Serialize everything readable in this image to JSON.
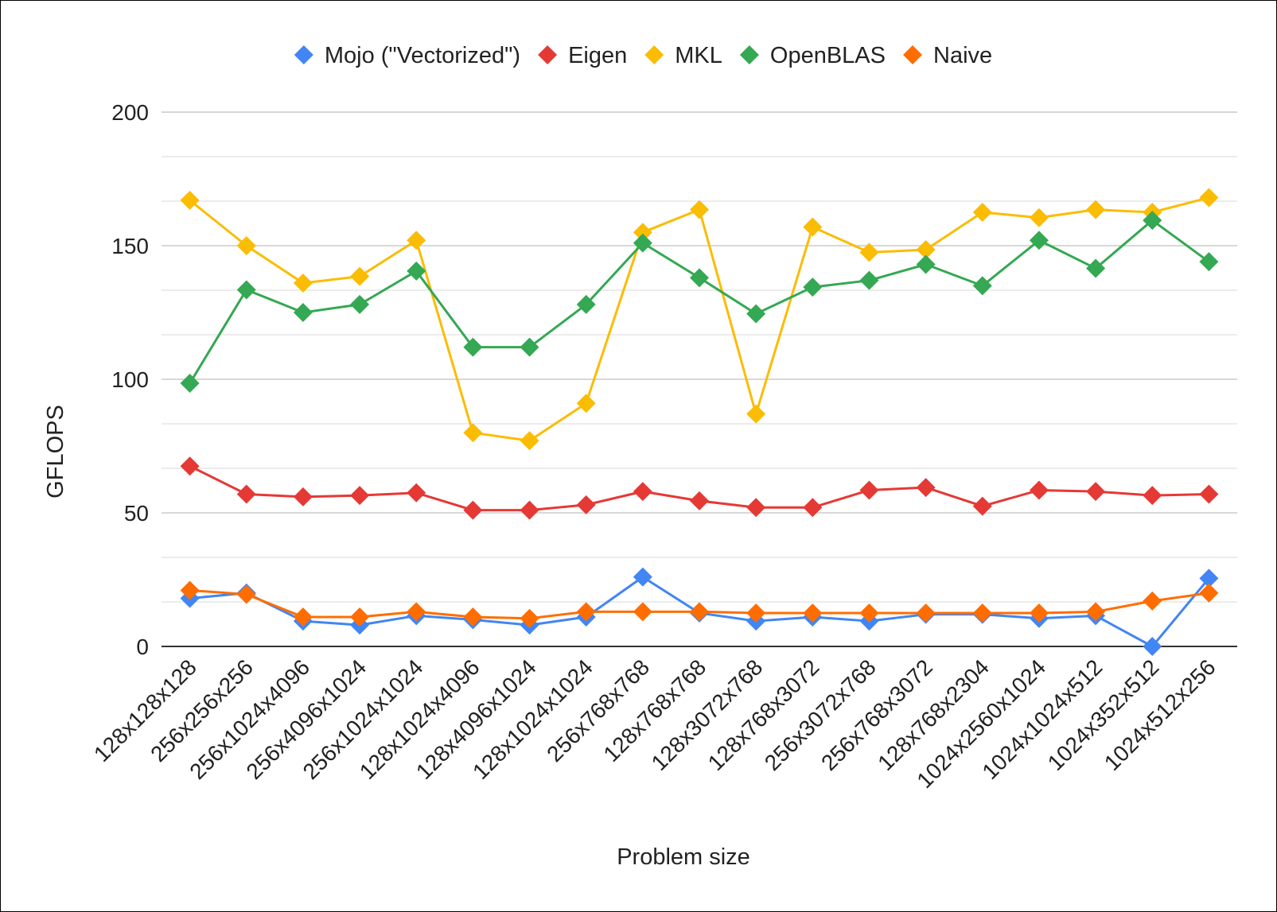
{
  "chart_data": {
    "type": "line",
    "title": "",
    "xlabel": "Problem size",
    "ylabel": "GFLOPS",
    "ylim": [
      0,
      200
    ],
    "yticks": [
      0,
      50,
      100,
      150,
      200
    ],
    "ytick_labels": [
      "0",
      "50",
      "100",
      "150",
      "200"
    ],
    "minor_gridlines": true,
    "grid": true,
    "legend_position": "top",
    "categories": [
      "128x128x128",
      "256x256x256",
      "256x1024x4096",
      "256x4096x1024",
      "256x1024x1024",
      "128x1024x4096",
      "128x4096x1024",
      "128x1024x1024",
      "256x768x768",
      "128x768x768",
      "128x3072x768",
      "128x768x3072",
      "256x3072x768",
      "256x768x3072",
      "128x768x2304",
      "1024x2560x1024",
      "1024x1024x512",
      "1024x352x512",
      "1024x512x256"
    ],
    "series": [
      {
        "name": "Mojo (\"Vectorized\")",
        "color": "#4285f4",
        "marker": "diamond",
        "values": [
          18,
          20,
          9.5,
          8,
          11.5,
          10,
          8,
          11,
          26,
          12.5,
          9.5,
          11,
          9.5,
          12,
          12,
          10.5,
          11.5,
          0,
          25.5
        ]
      },
      {
        "name": "Eigen",
        "color": "#e53935",
        "marker": "diamond",
        "values": [
          67.5,
          57,
          56,
          56.5,
          57.5,
          51,
          51,
          53,
          58,
          54.5,
          52,
          52,
          58.5,
          59.5,
          52.5,
          58.5,
          58,
          56.5,
          57
        ]
      },
      {
        "name": "MKL",
        "color": "#fbbc04",
        "marker": "diamond",
        "values": [
          167,
          150,
          136,
          138.5,
          152,
          80,
          77,
          91,
          155,
          163.5,
          87,
          157,
          147.5,
          148.5,
          162.5,
          160.5,
          163.5,
          162.5,
          168
        ]
      },
      {
        "name": "OpenBLAS",
        "color": "#34a853",
        "marker": "diamond",
        "values": [
          98.5,
          133.5,
          125,
          128,
          140.5,
          112,
          112,
          128,
          151,
          138,
          124.5,
          134.5,
          137,
          143,
          135,
          152,
          141.5,
          159.5,
          144
        ]
      },
      {
        "name": "Naive",
        "color": "#ff6d01",
        "marker": "diamond",
        "values": [
          21,
          19.5,
          11,
          11,
          13,
          11,
          10.5,
          13,
          13,
          13,
          12.5,
          12.5,
          12.5,
          12.5,
          12.5,
          12.5,
          13,
          17,
          20
        ]
      }
    ]
  },
  "colors": {
    "gridline_major": "#cccccc",
    "gridline_minor": "#e6e6e6",
    "axis_line": "#333333",
    "text": "#222222"
  }
}
